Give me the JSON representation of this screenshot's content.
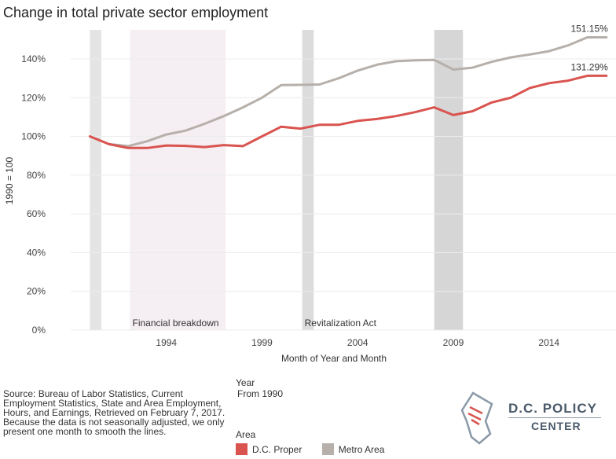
{
  "title": "Change in total private sector employment",
  "chart_data": {
    "type": "line",
    "title": "Change in total private sector employment",
    "xlabel": "Month of Year and Month",
    "ylabel": "1990 = 100",
    "xlim": [
      1989.0,
      2017.5
    ],
    "ylim": [
      0,
      155
    ],
    "x_ticks": [
      1994,
      1999,
      2004,
      2009,
      2014
    ],
    "y_ticks": [
      0,
      20,
      40,
      60,
      80,
      100,
      120,
      140
    ],
    "y_tick_labels": [
      "0%",
      "20%",
      "40%",
      "60%",
      "80%",
      "100%",
      "120%",
      "140%"
    ],
    "grid": "horizontal",
    "bands": [
      {
        "start": 1990.0,
        "end": 1990.6,
        "label": "",
        "color": "#e4e4e4"
      },
      {
        "start": 1992.1,
        "end": 1997.1,
        "label": "Financial breakdown",
        "color": "#f5eff3"
      },
      {
        "start": 2001.1,
        "end": 2001.7,
        "label": "Revitalization Act",
        "color": "#dcdcdc"
      },
      {
        "start": 2008.0,
        "end": 2009.5,
        "label": "",
        "color": "#d6d6d6"
      }
    ],
    "series": [
      {
        "name": "D.C. Proper",
        "color": "#d9534f",
        "x": [
          1990,
          1991,
          1992,
          1993,
          1994,
          1995,
          1996,
          1997,
          1998,
          1999,
          2000,
          2001,
          2002,
          2003,
          2004,
          2005,
          2006,
          2007,
          2008,
          2009,
          2010,
          2011,
          2012,
          2013,
          2014,
          2015,
          2016,
          2017
        ],
        "y": [
          100,
          96,
          94,
          94,
          95.3,
          95.1,
          94.5,
          95.5,
          95,
          100,
          105,
          104,
          106,
          106,
          108,
          109,
          110.5,
          112.5,
          115,
          111,
          113,
          117.5,
          120,
          125,
          127.5,
          128.8,
          131.29,
          131.29
        ],
        "end_label": "131.29%"
      },
      {
        "name": "Metro Area",
        "color": "#b7b0aa",
        "x": [
          1991,
          1992,
          1993,
          1994,
          1995,
          1996,
          1997,
          1998,
          1999,
          2000,
          2001,
          2002,
          2003,
          2004,
          2005,
          2006,
          2007,
          2008,
          2009,
          2010,
          2011,
          2012,
          2013,
          2014,
          2015,
          2016,
          2017
        ],
        "y": [
          96,
          95,
          97.5,
          101,
          103,
          106.5,
          110.5,
          115,
          120,
          126.5,
          126.6,
          126.8,
          130,
          134,
          137,
          138.8,
          139.3,
          139.5,
          134.5,
          135.5,
          138.5,
          140.8,
          142.3,
          144,
          147,
          151.15,
          151.15
        ],
        "end_label": "151.15%"
      }
    ]
  },
  "legend": {
    "year_title": "Year",
    "year_value": "From 1990",
    "area_title": "Area",
    "items": [
      {
        "label": "D.C. Proper",
        "color": "#d9534f"
      },
      {
        "label": "Metro Area",
        "color": "#b7b0aa"
      }
    ]
  },
  "source_note": "Source: Bureau of Labor Statistics, Current Employment Statistics, State and Area Employment, Hours, and Earnings, Retrieved on February 7, 2017. Because the data is not seasonally adjusted, we only present one month to smooth the lines.",
  "logo": {
    "line1": "D.C. POLICY",
    "line2": "CENTER"
  }
}
